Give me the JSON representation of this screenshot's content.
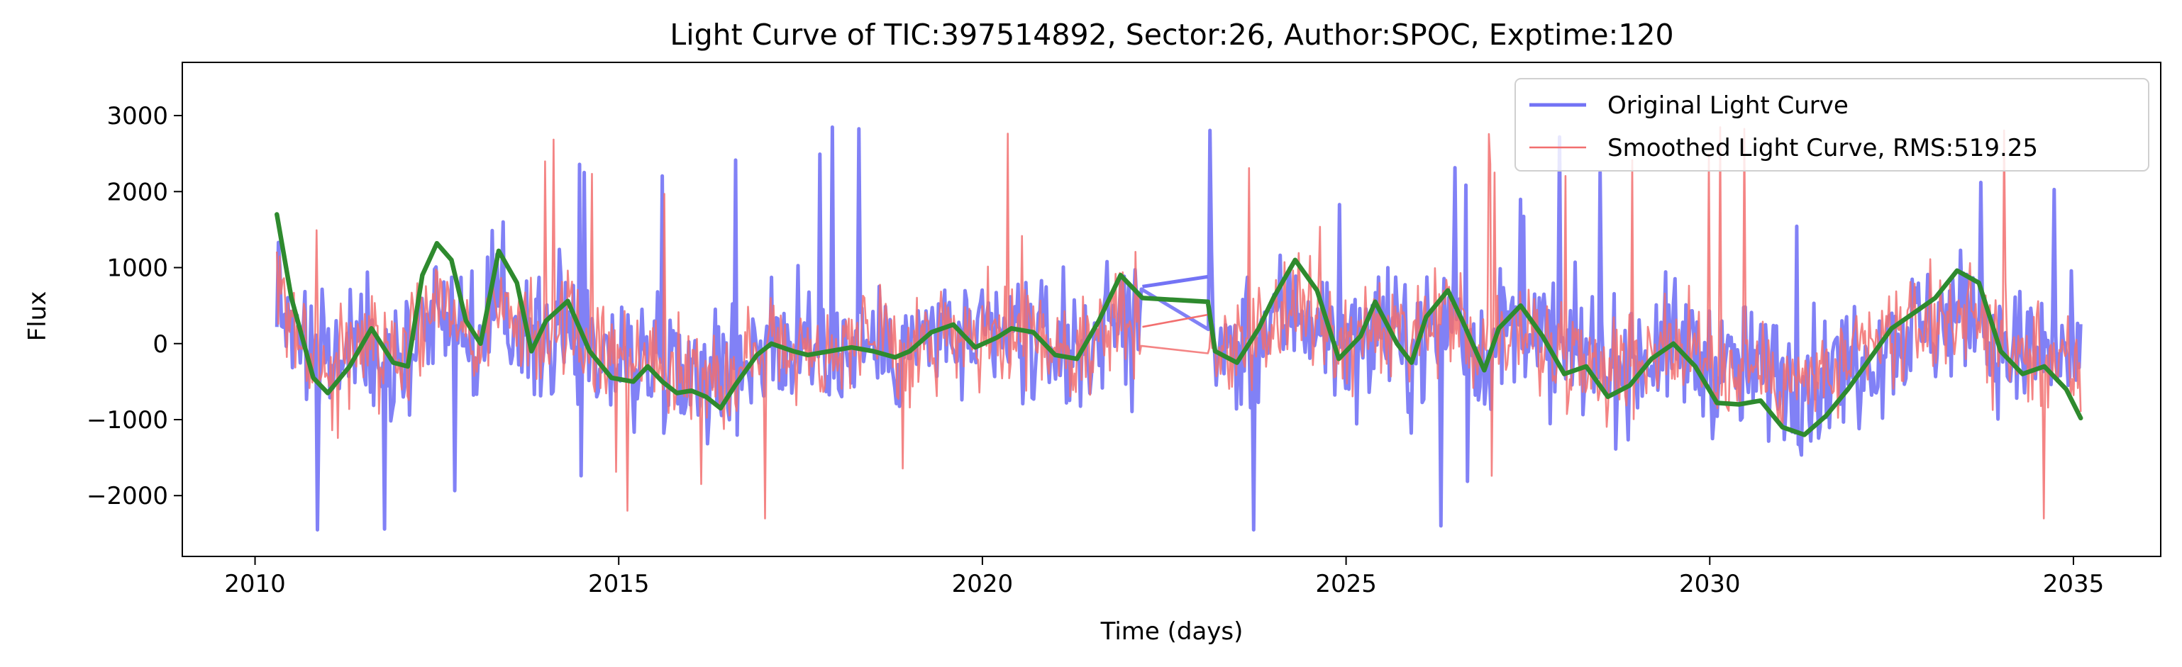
{
  "chart_data": {
    "type": "line",
    "title": "Light Curve of TIC:397514892, Sector:26, Author:SPOC, Exptime:120",
    "xlabel": "Time (days)",
    "ylabel": "Flux",
    "xlim": [
      2009.0,
      2036.2
    ],
    "ylim": [
      -2800,
      3700
    ],
    "xticks": [
      2010,
      2015,
      2020,
      2025,
      2030,
      2035
    ],
    "xtick_labels": [
      "2010",
      "2015",
      "2020",
      "2025",
      "2030",
      "2035"
    ],
    "yticks": [
      -2000,
      -1000,
      0,
      1000,
      2000,
      3000
    ],
    "ytick_labels": [
      "−2000",
      "−1000",
      "0",
      "1000",
      "2000",
      "3000"
    ],
    "grid": false,
    "legend_position": "top-right",
    "data_gap": [
      2022.2,
      2023.1
    ],
    "series": [
      {
        "name": "Original Light Curve",
        "color": "#7373f5",
        "style": "noisy",
        "x_range": [
          2010.3,
          2035.1
        ],
        "noise_amplitude": 780,
        "spike_max": 3400,
        "spike_min": -2450
      },
      {
        "name": "Smoothed Light Curve, RMS:519.25",
        "color": "#f26f6f",
        "style": "noisy",
        "x_range": [
          2010.3,
          2035.1
        ],
        "noise_amplitude": 620,
        "spike_max": 3000,
        "spike_min": -2300
      },
      {
        "name": "",
        "color": "#2e8a2e",
        "style": "trend",
        "points": [
          [
            2010.3,
            1700
          ],
          [
            2010.5,
            600
          ],
          [
            2010.8,
            -450
          ],
          [
            2011.0,
            -650
          ],
          [
            2011.3,
            -300
          ],
          [
            2011.6,
            200
          ],
          [
            2011.9,
            -250
          ],
          [
            2012.1,
            -300
          ],
          [
            2012.3,
            900
          ],
          [
            2012.5,
            1320
          ],
          [
            2012.7,
            1100
          ],
          [
            2012.9,
            300
          ],
          [
            2013.1,
            0
          ],
          [
            2013.35,
            1220
          ],
          [
            2013.6,
            800
          ],
          [
            2013.8,
            -100
          ],
          [
            2014.0,
            300
          ],
          [
            2014.3,
            560
          ],
          [
            2014.6,
            -100
          ],
          [
            2014.9,
            -450
          ],
          [
            2015.2,
            -500
          ],
          [
            2015.4,
            -300
          ],
          [
            2015.6,
            -500
          ],
          [
            2015.8,
            -650
          ],
          [
            2016.0,
            -620
          ],
          [
            2016.2,
            -700
          ],
          [
            2016.4,
            -850
          ],
          [
            2016.6,
            -550
          ],
          [
            2016.9,
            -150
          ],
          [
            2017.1,
            0
          ],
          [
            2017.4,
            -100
          ],
          [
            2017.6,
            -150
          ],
          [
            2017.9,
            -100
          ],
          [
            2018.2,
            -50
          ],
          [
            2018.5,
            -100
          ],
          [
            2018.8,
            -180
          ],
          [
            2019.0,
            -100
          ],
          [
            2019.3,
            150
          ],
          [
            2019.6,
            250
          ],
          [
            2019.9,
            -50
          ],
          [
            2020.2,
            80
          ],
          [
            2020.4,
            200
          ],
          [
            2020.7,
            150
          ],
          [
            2021.0,
            -150
          ],
          [
            2021.3,
            -200
          ],
          [
            2021.6,
            300
          ],
          [
            2021.9,
            900
          ],
          [
            2022.2,
            600
          ],
          [
            2023.1,
            550
          ],
          [
            2023.2,
            -100
          ],
          [
            2023.5,
            -250
          ],
          [
            2023.8,
            200
          ],
          [
            2024.0,
            600
          ],
          [
            2024.3,
            1100
          ],
          [
            2024.6,
            700
          ],
          [
            2024.9,
            -200
          ],
          [
            2025.2,
            100
          ],
          [
            2025.4,
            550
          ],
          [
            2025.7,
            0
          ],
          [
            2025.9,
            -250
          ],
          [
            2026.1,
            350
          ],
          [
            2026.4,
            700
          ],
          [
            2026.6,
            300
          ],
          [
            2026.9,
            -350
          ],
          [
            2027.1,
            200
          ],
          [
            2027.4,
            500
          ],
          [
            2027.7,
            100
          ],
          [
            2028.0,
            -400
          ],
          [
            2028.3,
            -300
          ],
          [
            2028.6,
            -700
          ],
          [
            2028.9,
            -550
          ],
          [
            2029.2,
            -200
          ],
          [
            2029.5,
            0
          ],
          [
            2029.8,
            -300
          ],
          [
            2030.1,
            -780
          ],
          [
            2030.4,
            -800
          ],
          [
            2030.7,
            -750
          ],
          [
            2031.0,
            -1100
          ],
          [
            2031.3,
            -1200
          ],
          [
            2031.6,
            -950
          ],
          [
            2031.9,
            -600
          ],
          [
            2032.2,
            -200
          ],
          [
            2032.5,
            200
          ],
          [
            2032.8,
            400
          ],
          [
            2033.1,
            600
          ],
          [
            2033.4,
            960
          ],
          [
            2033.7,
            800
          ],
          [
            2034.0,
            -100
          ],
          [
            2034.3,
            -400
          ],
          [
            2034.6,
            -300
          ],
          [
            2034.9,
            -600
          ],
          [
            2035.1,
            -980
          ]
        ]
      }
    ]
  }
}
